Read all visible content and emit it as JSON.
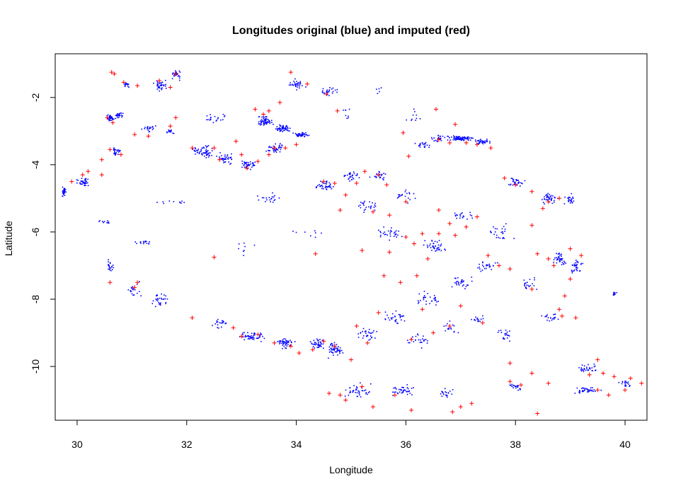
{
  "chart_data": {
    "type": "scatter",
    "title": "Longitudes original (blue) and imputed (red)",
    "xlabel": "Longitude",
    "ylabel": "Latitude",
    "xlim": [
      29.6,
      40.4
    ],
    "ylim": [
      -11.6,
      -0.7
    ],
    "xticks": [
      30,
      32,
      34,
      36,
      38,
      40
    ],
    "yticks": [
      -2,
      -4,
      -6,
      -8,
      -10
    ],
    "grid": false,
    "legend": "none",
    "colors": {
      "original": "#0000ff",
      "imputed": "#ff0000"
    },
    "series": [
      {
        "marker": "dot",
        "color": "#0000ff",
        "clusters": [
          [
            29.75,
            -4.8,
            0.08,
            0.2,
            30
          ],
          [
            30.1,
            -4.5,
            0.15,
            0.15,
            35
          ],
          [
            30.6,
            -2.6,
            0.1,
            0.12,
            40
          ],
          [
            30.75,
            -2.5,
            0.1,
            0.1,
            25
          ],
          [
            31.5,
            -1.6,
            0.15,
            0.2,
            40
          ],
          [
            31.8,
            -1.3,
            0.12,
            0.2,
            25
          ],
          [
            30.9,
            -1.6,
            0.1,
            0.1,
            15
          ],
          [
            30.7,
            -3.6,
            0.1,
            0.2,
            25
          ],
          [
            31.3,
            -2.9,
            0.15,
            0.15,
            20
          ],
          [
            31.7,
            -3.0,
            0.1,
            0.1,
            15
          ],
          [
            32.3,
            -3.6,
            0.25,
            0.25,
            60
          ],
          [
            32.7,
            -3.8,
            0.2,
            0.2,
            40
          ],
          [
            33.1,
            -4.0,
            0.2,
            0.2,
            40
          ],
          [
            33.4,
            -2.7,
            0.2,
            0.2,
            60
          ],
          [
            33.75,
            -2.9,
            0.2,
            0.15,
            50
          ],
          [
            34.1,
            -3.1,
            0.2,
            0.1,
            40
          ],
          [
            33.6,
            -3.5,
            0.2,
            0.2,
            40
          ],
          [
            34.0,
            -1.6,
            0.2,
            0.2,
            35
          ],
          [
            34.6,
            -1.8,
            0.2,
            0.15,
            25
          ],
          [
            34.5,
            -4.6,
            0.2,
            0.2,
            40
          ],
          [
            35.0,
            -4.3,
            0.2,
            0.2,
            30
          ],
          [
            35.5,
            -4.3,
            0.2,
            0.2,
            25
          ],
          [
            36.3,
            -3.4,
            0.2,
            0.15,
            20
          ],
          [
            36.6,
            -3.2,
            0.2,
            0.15,
            30
          ],
          [
            37.0,
            -3.2,
            0.3,
            0.1,
            80
          ],
          [
            37.4,
            -3.3,
            0.2,
            0.1,
            40
          ],
          [
            38.0,
            -4.5,
            0.2,
            0.2,
            30
          ],
          [
            38.6,
            -5.0,
            0.2,
            0.2,
            40
          ],
          [
            39.0,
            -5.0,
            0.15,
            0.2,
            25
          ],
          [
            38.8,
            -6.8,
            0.15,
            0.25,
            40
          ],
          [
            39.1,
            -7.0,
            0.15,
            0.25,
            35
          ],
          [
            39.8,
            -7.8,
            0.05,
            0.1,
            10
          ],
          [
            38.6,
            -8.5,
            0.2,
            0.2,
            20
          ],
          [
            39.3,
            -10.0,
            0.3,
            0.2,
            30
          ],
          [
            39.3,
            -10.7,
            0.3,
            0.15,
            40
          ],
          [
            40.0,
            -10.5,
            0.15,
            0.15,
            20
          ],
          [
            38.0,
            -10.6,
            0.2,
            0.2,
            20
          ],
          [
            36.7,
            -10.8,
            0.2,
            0.2,
            20
          ],
          [
            35.9,
            -10.7,
            0.3,
            0.2,
            40
          ],
          [
            35.1,
            -10.7,
            0.3,
            0.3,
            40
          ],
          [
            34.7,
            -9.5,
            0.2,
            0.3,
            50
          ],
          [
            34.4,
            -9.3,
            0.2,
            0.2,
            40
          ],
          [
            33.8,
            -9.3,
            0.2,
            0.2,
            50
          ],
          [
            33.2,
            -9.1,
            0.3,
            0.2,
            50
          ],
          [
            32.6,
            -8.7,
            0.2,
            0.2,
            20
          ],
          [
            31.5,
            -8.0,
            0.2,
            0.3,
            30
          ],
          [
            31.0,
            -7.7,
            0.2,
            0.3,
            20
          ],
          [
            30.6,
            -7.0,
            0.1,
            0.3,
            20
          ],
          [
            31.2,
            -6.3,
            0.2,
            0.1,
            15
          ],
          [
            30.5,
            -5.7,
            0.2,
            0.1,
            10
          ],
          [
            35.3,
            -9.0,
            0.3,
            0.3,
            30
          ],
          [
            35.8,
            -8.5,
            0.3,
            0.3,
            30
          ],
          [
            36.4,
            -8.0,
            0.3,
            0.3,
            30
          ],
          [
            37.0,
            -7.5,
            0.3,
            0.3,
            30
          ],
          [
            37.5,
            -7.0,
            0.3,
            0.2,
            25
          ],
          [
            37.7,
            -6.0,
            0.3,
            0.3,
            25
          ],
          [
            36.5,
            -6.4,
            0.3,
            0.3,
            40
          ],
          [
            35.7,
            -6.0,
            0.3,
            0.3,
            30
          ],
          [
            35.3,
            -5.2,
            0.3,
            0.3,
            25
          ],
          [
            36.0,
            -4.9,
            0.3,
            0.3,
            20
          ],
          [
            37.0,
            -5.5,
            0.3,
            0.2,
            20
          ],
          [
            36.2,
            -9.2,
            0.3,
            0.3,
            25
          ],
          [
            37.8,
            -9.0,
            0.2,
            0.3,
            20
          ],
          [
            37.3,
            -8.6,
            0.2,
            0.2,
            15
          ],
          [
            36.8,
            -8.8,
            0.2,
            0.3,
            15
          ],
          [
            38.2,
            -7.5,
            0.2,
            0.3,
            20
          ],
          [
            31.8,
            -5.1,
            0.4,
            0.05,
            10
          ],
          [
            33.5,
            -5.0,
            0.3,
            0.2,
            20
          ],
          [
            32.5,
            -2.6,
            0.3,
            0.2,
            20
          ],
          [
            33.0,
            -6.5,
            0.3,
            0.3,
            8
          ],
          [
            34.2,
            -6.0,
            0.4,
            0.3,
            8
          ],
          [
            36.1,
            -2.5,
            0.2,
            0.3,
            10
          ],
          [
            35.5,
            -1.8,
            0.1,
            0.2,
            5
          ],
          [
            34.9,
            -2.5,
            0.2,
            0.3,
            8
          ]
        ]
      },
      {
        "marker": "plus",
        "color": "#ff0000",
        "points": [
          [
            30.63,
            -1.25
          ],
          [
            30.68,
            -1.3
          ],
          [
            30.85,
            -1.55
          ],
          [
            31.1,
            -1.65
          ],
          [
            31.5,
            -1.5
          ],
          [
            31.7,
            -1.7
          ],
          [
            31.8,
            -1.3
          ],
          [
            30.55,
            -2.6
          ],
          [
            30.65,
            -2.75
          ],
          [
            30.6,
            -3.55
          ],
          [
            30.8,
            -3.7
          ],
          [
            30.45,
            -3.85
          ],
          [
            30.2,
            -4.2
          ],
          [
            29.9,
            -4.5
          ],
          [
            30.1,
            -4.3
          ],
          [
            30.45,
            -4.3
          ],
          [
            31.05,
            -3.1
          ],
          [
            31.3,
            -3.15
          ],
          [
            31.7,
            -2.85
          ],
          [
            31.8,
            -2.6
          ],
          [
            32.1,
            -3.5
          ],
          [
            32.5,
            -3.5
          ],
          [
            32.6,
            -3.85
          ],
          [
            32.9,
            -3.3
          ],
          [
            33.0,
            -3.7
          ],
          [
            33.1,
            -4.1
          ],
          [
            33.3,
            -3.9
          ],
          [
            33.5,
            -3.7
          ],
          [
            33.6,
            -3.5
          ],
          [
            33.8,
            -3.5
          ],
          [
            34.0,
            -3.4
          ],
          [
            33.25,
            -2.35
          ],
          [
            33.4,
            -2.5
          ],
          [
            33.5,
            -2.4
          ],
          [
            33.7,
            -2.15
          ],
          [
            33.9,
            -1.25
          ],
          [
            34.2,
            -1.6
          ],
          [
            34.55,
            -1.9
          ],
          [
            34.75,
            -2.4
          ],
          [
            34.5,
            -4.5
          ],
          [
            34.7,
            -4.55
          ],
          [
            34.9,
            -4.9
          ],
          [
            35.1,
            -4.55
          ],
          [
            35.25,
            -4.2
          ],
          [
            35.5,
            -4.3
          ],
          [
            35.65,
            -4.6
          ],
          [
            35.95,
            -3.05
          ],
          [
            36.05,
            -3.75
          ],
          [
            36.6,
            -3.25
          ],
          [
            36.8,
            -3.35
          ],
          [
            37.1,
            -3.35
          ],
          [
            37.3,
            -3.4
          ],
          [
            37.55,
            -3.5
          ],
          [
            36.55,
            -2.35
          ],
          [
            36.9,
            -2.8
          ],
          [
            37.8,
            -4.4
          ],
          [
            38.0,
            -4.6
          ],
          [
            38.3,
            -4.8
          ],
          [
            38.5,
            -5.3
          ],
          [
            38.6,
            -5.1
          ],
          [
            38.8,
            -5.0
          ],
          [
            38.6,
            -6.8
          ],
          [
            38.7,
            -7.0
          ],
          [
            39.0,
            -6.5
          ],
          [
            39.2,
            -6.7
          ],
          [
            39.0,
            -7.4
          ],
          [
            38.9,
            -7.9
          ],
          [
            38.8,
            -8.3
          ],
          [
            38.85,
            -8.5
          ],
          [
            39.1,
            -8.55
          ],
          [
            39.5,
            -9.8
          ],
          [
            39.35,
            -10.25
          ],
          [
            39.6,
            -10.2
          ],
          [
            39.8,
            -10.3
          ],
          [
            40.1,
            -10.35
          ],
          [
            40.3,
            -10.5
          ],
          [
            40.0,
            -10.7
          ],
          [
            39.7,
            -10.85
          ],
          [
            39.5,
            -10.7
          ],
          [
            38.3,
            -10.2
          ],
          [
            38.6,
            -10.5
          ],
          [
            38.4,
            -11.4
          ],
          [
            38.1,
            -10.55
          ],
          [
            37.9,
            -10.45
          ],
          [
            37.9,
            -9.9
          ],
          [
            37.2,
            -11.1
          ],
          [
            37.0,
            -11.2
          ],
          [
            36.85,
            -11.35
          ],
          [
            36.1,
            -11.3
          ],
          [
            35.8,
            -10.85
          ],
          [
            35.4,
            -11.2
          ],
          [
            34.9,
            -11.0
          ],
          [
            34.8,
            -10.85
          ],
          [
            34.6,
            -10.8
          ],
          [
            35.2,
            -10.6
          ],
          [
            35.0,
            -9.8
          ],
          [
            34.7,
            -9.4
          ],
          [
            34.5,
            -9.25
          ],
          [
            34.3,
            -9.5
          ],
          [
            34.05,
            -9.6
          ],
          [
            33.9,
            -9.4
          ],
          [
            33.6,
            -9.3
          ],
          [
            33.3,
            -9.05
          ],
          [
            33.0,
            -9.1
          ],
          [
            32.85,
            -8.85
          ],
          [
            32.1,
            -8.55
          ],
          [
            31.1,
            -7.5
          ],
          [
            31.05,
            -7.65
          ],
          [
            30.6,
            -7.5
          ],
          [
            32.5,
            -6.75
          ],
          [
            34.35,
            -6.65
          ],
          [
            35.2,
            -6.55
          ],
          [
            35.7,
            -6.6
          ],
          [
            36.0,
            -6.15
          ],
          [
            36.15,
            -6.35
          ],
          [
            36.3,
            -6.05
          ],
          [
            36.6,
            -6.05
          ],
          [
            36.9,
            -6.1
          ],
          [
            37.1,
            -5.85
          ],
          [
            37.3,
            -5.55
          ],
          [
            36.4,
            -6.8
          ],
          [
            36.2,
            -7.3
          ],
          [
            35.9,
            -7.5
          ],
          [
            35.6,
            -7.3
          ],
          [
            35.4,
            -5.4
          ],
          [
            35.7,
            -5.5
          ],
          [
            36.0,
            -5.1
          ],
          [
            36.6,
            -5.35
          ],
          [
            36.8,
            -5.75
          ],
          [
            37.5,
            -6.7
          ],
          [
            37.7,
            -7.0
          ],
          [
            37.9,
            -7.1
          ],
          [
            38.4,
            -6.65
          ],
          [
            38.3,
            -5.8
          ],
          [
            36.3,
            -8.3
          ],
          [
            36.1,
            -9.2
          ],
          [
            36.5,
            -9.0
          ],
          [
            37.0,
            -8.2
          ],
          [
            36.8,
            -8.8
          ],
          [
            37.4,
            -8.7
          ],
          [
            35.5,
            -8.4
          ],
          [
            35.1,
            -8.8
          ],
          [
            35.3,
            -9.3
          ],
          [
            38.3,
            -7.7
          ],
          [
            34.8,
            -5.35
          ]
        ]
      }
    ]
  }
}
